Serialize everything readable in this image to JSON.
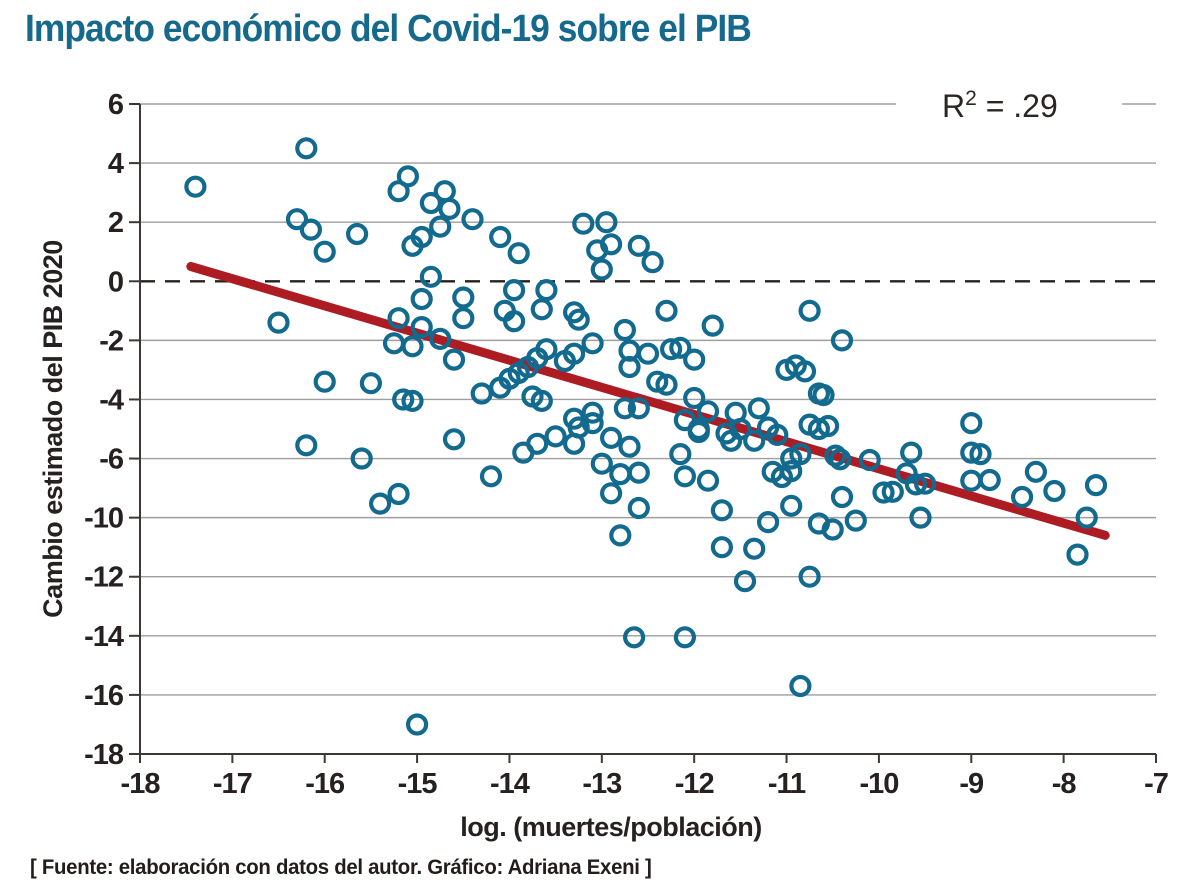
{
  "title": "Impacto económico del Covid-19 sobre el PIB",
  "annotation": {
    "base": "R",
    "sup": "2",
    "rest": " = .29"
  },
  "footer": "[ Fuente: elaboración con datos del autor. Gráfico: Adriana Exeni ]",
  "colors": {
    "title": "#15698c",
    "point": "#126a8f",
    "trend": "#ae1c23",
    "grid": "#9e9e9e",
    "axis": "#3d3835",
    "text": "#262120",
    "dashed": "#26211f",
    "annotation_text": "#2b2422"
  },
  "chart_data": {
    "type": "scatter",
    "title": "Impacto económico del Covid-19 sobre el PIB",
    "xlabel": "log. (muertes/población)",
    "ylabel": "Cambio estimado del PIB 2020",
    "r_squared_label": "R2 = .29",
    "r_squared": 0.29,
    "xlim": [
      -18,
      -7
    ],
    "grid": true,
    "legend": "none",
    "x_ticks": [
      -18,
      -17,
      -16,
      -15,
      -14,
      -13,
      -12,
      -11,
      -10,
      -9,
      -8,
      -7
    ],
    "y_ticks_printed": [
      6,
      4,
      2,
      0,
      -2,
      -4,
      -6,
      -10,
      -12,
      -14,
      -16,
      -18
    ],
    "zero_line_y": 0,
    "trend": {
      "x1": -17.45,
      "y1": 0.5,
      "x2": -7.55,
      "y2": -10.6
    },
    "points": [
      [
        -17.4,
        3.2
      ],
      [
        -16.2,
        4.5
      ],
      [
        -16.3,
        2.1
      ],
      [
        -16.15,
        1.75
      ],
      [
        -16.0,
        1.0
      ],
      [
        -15.65,
        1.6
      ],
      [
        -16.5,
        -1.4
      ],
      [
        -16.0,
        -3.4
      ],
      [
        -15.5,
        -3.45
      ],
      [
        -15.15,
        -4.0
      ],
      [
        -15.05,
        -4.05
      ],
      [
        -15.2,
        3.05
      ],
      [
        -15.1,
        3.55
      ],
      [
        -14.85,
        2.65
      ],
      [
        -14.7,
        3.05
      ],
      [
        -14.65,
        2.45
      ],
      [
        -14.75,
        1.85
      ],
      [
        -14.4,
        2.1
      ],
      [
        -15.05,
        1.2
      ],
      [
        -14.95,
        1.5
      ],
      [
        -14.85,
        0.15
      ],
      [
        -14.95,
        -0.6
      ],
      [
        -15.2,
        -1.25
      ],
      [
        -14.95,
        -1.55
      ],
      [
        -15.25,
        -2.1
      ],
      [
        -15.05,
        -2.2
      ],
      [
        -14.75,
        -1.95
      ],
      [
        -14.6,
        -2.65
      ],
      [
        -14.5,
        -0.55
      ],
      [
        -14.5,
        -1.25
      ],
      [
        -14.3,
        -3.8
      ],
      [
        -14.1,
        1.5
      ],
      [
        -13.9,
        0.95
      ],
      [
        -13.2,
        1.95
      ],
      [
        -12.95,
        2.0
      ],
      [
        -13.05,
        1.05
      ],
      [
        -12.9,
        1.25
      ],
      [
        -13.0,
        0.4
      ],
      [
        -12.6,
        1.2
      ],
      [
        -12.45,
        0.65
      ],
      [
        -13.95,
        -0.3
      ],
      [
        -13.6,
        -0.3
      ],
      [
        -14.05,
        -1.0
      ],
      [
        -13.95,
        -1.35
      ],
      [
        -13.65,
        -0.95
      ],
      [
        -13.3,
        -1.05
      ],
      [
        -13.25,
        -1.3
      ],
      [
        -12.3,
        -1.0
      ],
      [
        -11.8,
        -1.5
      ],
      [
        -10.75,
        -1.0
      ],
      [
        -10.4,
        -2.0
      ],
      [
        -13.6,
        -2.3
      ],
      [
        -13.7,
        -2.6
      ],
      [
        -13.8,
        -2.9
      ],
      [
        -13.9,
        -3.1
      ],
      [
        -14.0,
        -3.3
      ],
      [
        -14.1,
        -3.6
      ],
      [
        -13.4,
        -2.7
      ],
      [
        -13.3,
        -2.45
      ],
      [
        -13.1,
        -2.1
      ],
      [
        -13.75,
        -3.9
      ],
      [
        -13.65,
        -4.05
      ],
      [
        -12.75,
        -1.65
      ],
      [
        -12.7,
        -2.35
      ],
      [
        -12.7,
        -2.9
      ],
      [
        -12.5,
        -2.45
      ],
      [
        -12.25,
        -2.3
      ],
      [
        -12.15,
        -2.25
      ],
      [
        -12.0,
        -2.65
      ],
      [
        -11.0,
        -3.0
      ],
      [
        -10.9,
        -2.85
      ],
      [
        -10.8,
        -3.05
      ],
      [
        -10.65,
        -3.8
      ],
      [
        -10.6,
        -3.85
      ],
      [
        -12.4,
        -3.4
      ],
      [
        -12.3,
        -3.5
      ],
      [
        -12.0,
        -3.95
      ],
      [
        -13.3,
        -4.65
      ],
      [
        -13.1,
        -4.45
      ],
      [
        -12.75,
        -4.3
      ],
      [
        -12.6,
        -4.3
      ],
      [
        -13.85,
        -5.8
      ],
      [
        -13.7,
        -5.5
      ],
      [
        -13.5,
        -5.25
      ],
      [
        -13.3,
        -5.5
      ],
      [
        -13.25,
        -4.95
      ],
      [
        -13.1,
        -4.8
      ],
      [
        -12.9,
        -5.3
      ],
      [
        -12.7,
        -5.6
      ],
      [
        -13.0,
        -6.35
      ],
      [
        -12.9,
        -8.35
      ],
      [
        -12.8,
        -7.05
      ],
      [
        -12.6,
        -6.95
      ],
      [
        -12.6,
        -9.35
      ],
      [
        -12.8,
        -10.6
      ],
      [
        -12.15,
        -5.85
      ],
      [
        -12.1,
        -7.2
      ],
      [
        -11.85,
        -7.5
      ],
      [
        -11.95,
        -5.1
      ],
      [
        -11.65,
        -5.15
      ],
      [
        -11.6,
        -5.4
      ],
      [
        -11.7,
        -9.5
      ],
      [
        -11.7,
        -11.0
      ],
      [
        -11.35,
        -11.05
      ],
      [
        -11.45,
        -12.15
      ],
      [
        -11.85,
        -4.4
      ],
      [
        -12.1,
        -4.7
      ],
      [
        -11.95,
        -5.0
      ],
      [
        -11.55,
        -4.45
      ],
      [
        -11.5,
        -5.0
      ],
      [
        -11.3,
        -4.3
      ],
      [
        -11.35,
        -5.4
      ],
      [
        -11.2,
        -4.95
      ],
      [
        -11.1,
        -5.2
      ],
      [
        -11.2,
        -10.15
      ],
      [
        -11.15,
        -6.9
      ],
      [
        -11.05,
        -7.25
      ],
      [
        -10.95,
        -6.85
      ],
      [
        -10.95,
        -6.0
      ],
      [
        -10.85,
        -5.85
      ],
      [
        -10.75,
        -4.85
      ],
      [
        -10.65,
        -5.0
      ],
      [
        -10.55,
        -4.9
      ],
      [
        -10.95,
        -9.2
      ],
      [
        -10.65,
        -10.2
      ],
      [
        -10.5,
        -10.4
      ],
      [
        -10.75,
        -12.0
      ],
      [
        -12.65,
        -14.05
      ],
      [
        -12.1,
        -14.05
      ],
      [
        -10.85,
        -15.7
      ],
      [
        -16.2,
        -5.55
      ],
      [
        -15.6,
        -6.0
      ],
      [
        -15.4,
        -9.05
      ],
      [
        -15.2,
        -8.4
      ],
      [
        -14.6,
        -5.35
      ],
      [
        -15.0,
        -17.0
      ],
      [
        -14.2,
        -7.2
      ],
      [
        -10.47,
        -5.9
      ],
      [
        -10.42,
        -6.05
      ],
      [
        -10.1,
        -6.1
      ],
      [
        -10.4,
        -8.6
      ],
      [
        -10.25,
        -10.1
      ],
      [
        -9.95,
        -8.3
      ],
      [
        -9.85,
        -8.25
      ],
      [
        -9.7,
        -7.0
      ],
      [
        -9.65,
        -5.8
      ],
      [
        -9.6,
        -7.75
      ],
      [
        -9.5,
        -7.7
      ],
      [
        -9.55,
        -10.0
      ],
      [
        -9.0,
        -4.8
      ],
      [
        -9.0,
        -5.8
      ],
      [
        -8.9,
        -5.85
      ],
      [
        -9.0,
        -7.5
      ],
      [
        -8.8,
        -7.45
      ],
      [
        -8.45,
        -8.6
      ],
      [
        -8.3,
        -6.9
      ],
      [
        -8.1,
        -8.2
      ],
      [
        -7.75,
        -10.0
      ],
      [
        -7.65,
        -7.8
      ],
      [
        -7.85,
        -11.25
      ]
    ]
  }
}
